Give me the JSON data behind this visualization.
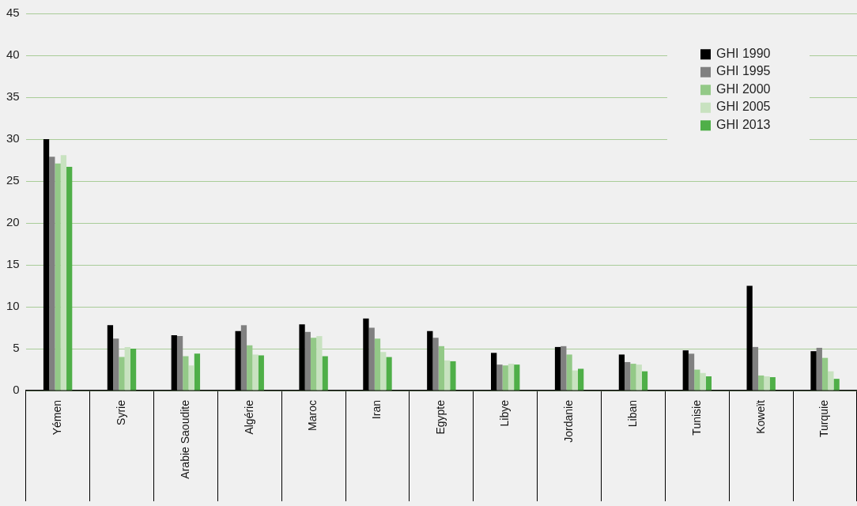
{
  "chart_data": {
    "type": "bar",
    "categories": [
      "Yémen",
      "Syrie",
      "Arabie Saoudite",
      "Algérie",
      "Maroc",
      "Iran",
      "Egypte",
      "Libye",
      "Jordanie",
      "Liban",
      "Tunisie",
      "Koweït",
      "Turquie"
    ],
    "series": [
      {
        "name": "GHI 1990",
        "color": "#000000",
        "values": [
          30,
          7.8,
          6.6,
          7.1,
          7.9,
          8.6,
          7.1,
          4.5,
          5.2,
          4.3,
          4.8,
          12.5,
          4.7
        ]
      },
      {
        "name": "GHI 1995",
        "color": "#808080",
        "values": [
          27.9,
          6.2,
          6.5,
          7.8,
          7.0,
          7.5,
          6.3,
          3.1,
          5.3,
          3.4,
          4.4,
          5.2,
          5.1
        ]
      },
      {
        "name": "GHI 2000",
        "color": "#93c987",
        "values": [
          27.1,
          4.0,
          4.1,
          5.4,
          6.3,
          6.2,
          5.3,
          3.0,
          4.3,
          3.2,
          2.5,
          1.8,
          3.9
        ]
      },
      {
        "name": "GHI 2005",
        "color": "#c8e2c0",
        "values": [
          28.1,
          5.2,
          3.0,
          4.3,
          6.5,
          4.6,
          3.6,
          3.2,
          2.4,
          3.1,
          2.1,
          1.7,
          2.3
        ]
      },
      {
        "name": "GHI 2013",
        "color": "#4faf48",
        "values": [
          26.7,
          5.0,
          4.4,
          4.2,
          4.1,
          4.0,
          3.5,
          3.1,
          2.6,
          2.3,
          1.7,
          1.6,
          1.4
        ]
      }
    ],
    "ylim": [
      0,
      45
    ],
    "yticks": [
      0,
      5,
      10,
      15,
      20,
      25,
      30,
      35,
      40,
      45
    ],
    "grid": "y",
    "legend": "top right"
  }
}
